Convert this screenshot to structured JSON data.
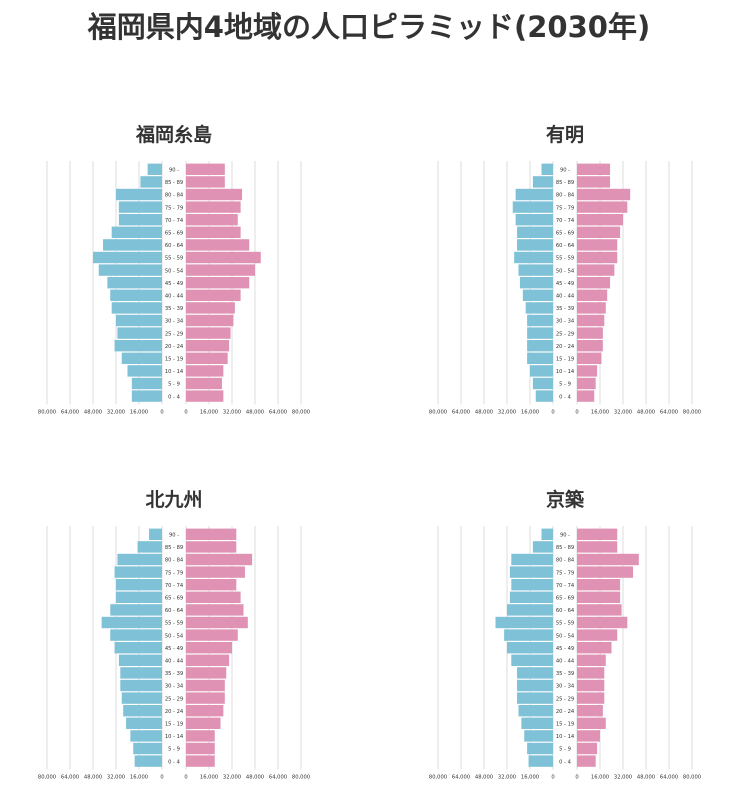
{
  "title": "福岡県内4地域の人口ピラミッド(2030年)",
  "colors": {
    "male": "#7fc1d6",
    "female": "#df92b4",
    "grid": "#d4d4d4",
    "text": "#333333"
  },
  "chart_data": [
    {
      "type": "bar",
      "title": "福岡糸島",
      "categories": [
        "0 - 4",
        "5 - 9",
        "10 - 14",
        "15 - 19",
        "20 - 24",
        "25 - 29",
        "30 - 34",
        "35 - 39",
        "40 - 44",
        "45 - 49",
        "50 - 54",
        "55 - 59",
        "60 - 64",
        "65 - 69",
        "70 - 74",
        "75 - 79",
        "80 - 84",
        "85 - 89",
        "90 -"
      ],
      "series": [
        {
          "side": "left",
          "values": [
            21000,
            21000,
            24000,
            28000,
            33000,
            31000,
            32000,
            35000,
            36000,
            38000,
            44000,
            48000,
            41000,
            35000,
            30000,
            30000,
            32000,
            15000,
            10000
          ]
        },
        {
          "side": "right",
          "values": [
            26000,
            25000,
            26000,
            29000,
            30000,
            31000,
            33000,
            34000,
            38000,
            44000,
            48000,
            52000,
            44000,
            38000,
            36000,
            38000,
            39000,
            27000,
            27000
          ]
        }
      ],
      "xticks_left": [
        "80,000",
        "64,000",
        "48,000",
        "32,000",
        "16,000",
        "0"
      ],
      "xticks_right": [
        "0",
        "16,000",
        "32,000",
        "48,000",
        "64,000",
        "80,000"
      ],
      "xlim": [
        0,
        80000
      ]
    },
    {
      "type": "bar",
      "title": "有明",
      "categories": [
        "0 - 4",
        "5 - 9",
        "10 - 14",
        "15 - 19",
        "20 - 24",
        "25 - 29",
        "30 - 34",
        "35 - 39",
        "40 - 44",
        "45 - 49",
        "50 - 54",
        "55 - 59",
        "60 - 64",
        "65 - 69",
        "70 - 74",
        "75 - 79",
        "80 - 84",
        "85 - 89",
        "90 -"
      ],
      "series": [
        {
          "side": "left",
          "values": [
            12000,
            14000,
            16000,
            18000,
            18000,
            18000,
            18000,
            19000,
            21000,
            23000,
            24000,
            27000,
            25000,
            25000,
            26000,
            28000,
            26000,
            14000,
            8000
          ]
        },
        {
          "side": "right",
          "values": [
            12000,
            13000,
            14000,
            17000,
            18000,
            18000,
            19000,
            20000,
            21000,
            23000,
            26000,
            28000,
            28000,
            30000,
            32000,
            35000,
            37000,
            23000,
            23000
          ]
        }
      ],
      "xticks_left": [
        "80,000",
        "64,000",
        "48,000",
        "32,000",
        "16,000",
        "0"
      ],
      "xticks_right": [
        "0",
        "16,000",
        "32,000",
        "48,000",
        "64,000",
        "80,000"
      ],
      "xlim": [
        0,
        80000
      ]
    },
    {
      "type": "bar",
      "title": "北九州",
      "categories": [
        "0 - 4",
        "5 - 9",
        "10 - 14",
        "15 - 19",
        "20 - 24",
        "25 - 29",
        "30 - 34",
        "35 - 39",
        "40 - 44",
        "45 - 49",
        "50 - 54",
        "55 - 59",
        "60 - 64",
        "65 - 69",
        "70 - 74",
        "75 - 79",
        "80 - 84",
        "85 - 89",
        "90 -"
      ],
      "series": [
        {
          "side": "left",
          "values": [
            19000,
            20000,
            22000,
            25000,
            27000,
            28000,
            29000,
            29000,
            30000,
            33000,
            36000,
            42000,
            36000,
            32000,
            32000,
            33000,
            31000,
            17000,
            9000
          ]
        },
        {
          "side": "right",
          "values": [
            20000,
            20000,
            20000,
            24000,
            26000,
            27000,
            27000,
            28000,
            30000,
            32000,
            36000,
            43000,
            40000,
            38000,
            35000,
            41000,
            46000,
            35000,
            35000
          ]
        }
      ],
      "xticks_left": [
        "80,000",
        "64,000",
        "48,000",
        "32,000",
        "16,000",
        "0"
      ],
      "xticks_right": [
        "0",
        "16,000",
        "32,000",
        "48,000",
        "64,000",
        "80,000"
      ],
      "xlim": [
        0,
        80000
      ]
    },
    {
      "type": "bar",
      "title": "京築",
      "categories": [
        "0 - 4",
        "5 - 9",
        "10 - 14",
        "15 - 19",
        "20 - 24",
        "25 - 29",
        "30 - 34",
        "35 - 39",
        "40 - 44",
        "45 - 49",
        "50 - 54",
        "55 - 59",
        "60 - 64",
        "65 - 69",
        "70 - 74",
        "75 - 79",
        "80 - 84",
        "85 - 89",
        "90 -"
      ],
      "series": [
        {
          "side": "left",
          "values": [
            17000,
            18000,
            20000,
            22000,
            24000,
            25000,
            25000,
            25000,
            29000,
            32000,
            34000,
            40000,
            32000,
            30000,
            29000,
            30000,
            29000,
            14000,
            8000
          ]
        },
        {
          "side": "right",
          "values": [
            13000,
            14000,
            16000,
            20000,
            18000,
            19000,
            19000,
            19000,
            20000,
            24000,
            28000,
            35000,
            31000,
            30000,
            30000,
            39000,
            43000,
            28000,
            28000
          ]
        }
      ],
      "xticks_left": [
        "80,000",
        "64,000",
        "48,000",
        "32,000",
        "16,000",
        "0"
      ],
      "xticks_right": [
        "0",
        "16,000",
        "32,000",
        "48,000",
        "64,000",
        "80,000"
      ],
      "xlim": [
        0,
        80000
      ]
    }
  ]
}
